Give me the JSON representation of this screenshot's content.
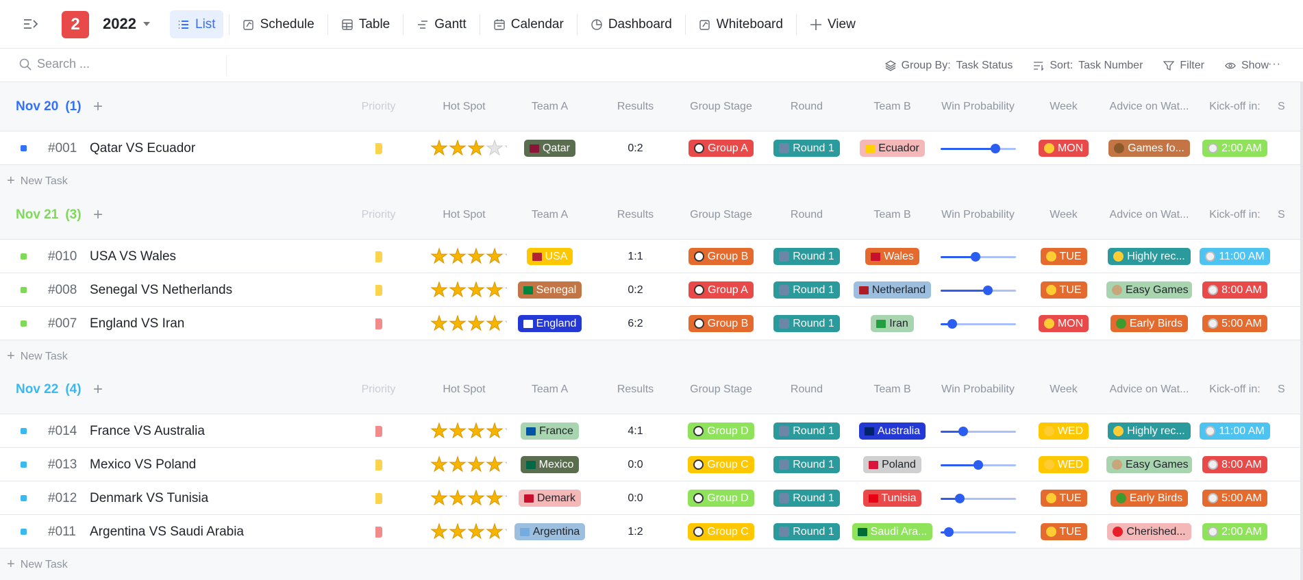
{
  "topbar": {
    "badge": "2",
    "year": "2022",
    "views": [
      {
        "label": "List",
        "icon": "list-icon",
        "active": true
      },
      {
        "label": "Schedule",
        "icon": "schedule-icon"
      },
      {
        "label": "Table",
        "icon": "table-icon"
      },
      {
        "label": "Gantt",
        "icon": "gantt-icon"
      },
      {
        "label": "Calendar",
        "icon": "calendar-icon"
      },
      {
        "label": "Dashboard",
        "icon": "dashboard-icon"
      },
      {
        "label": "Whiteboard",
        "icon": "whiteboard-icon"
      },
      {
        "label": "View",
        "icon": "plus-icon"
      }
    ]
  },
  "toolbar": {
    "search_placeholder": "Search ...",
    "group_by_label": "Group By:",
    "group_by_value": "Task Status",
    "sort_label": "Sort:",
    "sort_value": "Task Number",
    "filter": "Filter",
    "show": "Show",
    "more": "···"
  },
  "columns": [
    "Priority",
    "Hot Spot",
    "Team A",
    "Results",
    "Group Stage",
    "Round",
    "Team B",
    "Win Probability",
    "Week",
    "Advice on Wat...",
    "Kick-off in:",
    "S"
  ],
  "new_task_label": "New Task",
  "colors": {
    "group_A": "#e84a4a",
    "group_B": "#e56a2d",
    "group_C": "#ffc700",
    "group_D": "#8ee35a",
    "round": "#2a9a9d",
    "slider": "#2a5df0"
  },
  "groups": [
    {
      "title": "Nov 20",
      "count": "(1)",
      "color": "#3370ff",
      "tasks": [
        {
          "id": "#001",
          "title": "Qatar VS Ecuador",
          "priority": "#fcd34d",
          "stars": 3,
          "team_a": {
            "label": "Qatar",
            "bg": "#5a6e4f",
            "flag": "#8a1538",
            "dark": false
          },
          "results": "0:2",
          "group": {
            "label": "Group A",
            "bg": "#e84a4a"
          },
          "round": "Round 1",
          "team_b": {
            "label": "Ecuador",
            "bg": "#f5b8b8",
            "flag": "#ffd100",
            "dark": true
          },
          "win_probability": 0.73,
          "week": {
            "label": "MON",
            "bg": "#e84a4a"
          },
          "advice": {
            "label": "Games fo...",
            "bg": "#c37545",
            "icon": "owl-icon",
            "ic": "#8b5a2b"
          },
          "kickoff": {
            "label": "2:00 AM",
            "bg": "#8ee35a"
          }
        }
      ]
    },
    {
      "title": "Nov 21",
      "count": "(3)",
      "color": "#7ed957",
      "tasks": [
        {
          "id": "#010",
          "title": "USA VS Wales",
          "priority": "#fcd34d",
          "stars": 4,
          "team_a": {
            "label": "USA",
            "bg": "#ffc700",
            "flag": "#b22234",
            "dark": false
          },
          "results": "1:1",
          "group": {
            "label": "Group B",
            "bg": "#e56a2d"
          },
          "round": "Round 1",
          "team_b": {
            "label": "Wales",
            "bg": "#e56a2d",
            "flag": "#c8102e",
            "dark": false
          },
          "win_probability": 0.47,
          "week": {
            "label": "TUE",
            "bg": "#e56a2d"
          },
          "advice": {
            "label": "Highly rec...",
            "bg": "#2a9a9d",
            "icon": "thumbs-up-icon",
            "ic": "#ffcc33"
          },
          "kickoff": {
            "label": "11:00 AM",
            "bg": "#4cc3f0"
          }
        },
        {
          "id": "#008",
          "title": "Senegal VS Netherlands",
          "priority": "#fcd34d",
          "stars": 4,
          "team_a": {
            "label": "Senegal",
            "bg": "#c37545",
            "flag": "#00853f",
            "dark": false
          },
          "results": "0:2",
          "group": {
            "label": "Group A",
            "bg": "#e84a4a"
          },
          "round": "Round 1",
          "team_b": {
            "label": "Netherland",
            "bg": "#9dbfdf",
            "flag": "#ae1c28",
            "dark": true
          },
          "win_probability": 0.63,
          "week": {
            "label": "TUE",
            "bg": "#e56a2d"
          },
          "advice": {
            "label": "Easy Games",
            "bg": "#a8d5b0",
            "icon": "skewer-icon",
            "ic": "#c9a57a",
            "dark": true
          },
          "kickoff": {
            "label": "8:00 AM",
            "bg": "#e84a4a"
          }
        },
        {
          "id": "#007",
          "title": "England VS Iran",
          "priority": "#f28b8b",
          "stars": 4,
          "team_a": {
            "label": "England",
            "bg": "#2438d6",
            "flag": "#ffffff",
            "dark": false
          },
          "results": "6:2",
          "group": {
            "label": "Group B",
            "bg": "#e56a2d"
          },
          "round": "Round 1",
          "team_b": {
            "label": "Iran",
            "bg": "#a8d5b0",
            "flag": "#239f40",
            "dark": true
          },
          "win_probability": 0.16,
          "week": {
            "label": "MON",
            "bg": "#e84a4a"
          },
          "advice": {
            "label": "Early Birds",
            "bg": "#e56a2d",
            "icon": "parrot-icon",
            "ic": "#3c9a2f"
          },
          "kickoff": {
            "label": "5:00 AM",
            "bg": "#e56a2d"
          }
        }
      ]
    },
    {
      "title": "Nov 22",
      "count": "(4)",
      "color": "#3bb8f0",
      "tasks": [
        {
          "id": "#014",
          "title": "France VS Australia",
          "priority": "#f28b8b",
          "stars": 4,
          "team_a": {
            "label": "France",
            "bg": "#a8d5b0",
            "flag": "#0055a4",
            "dark": true
          },
          "results": "4:1",
          "group": {
            "label": "Group D",
            "bg": "#8ee35a"
          },
          "round": "Round 1",
          "team_b": {
            "label": "Australia",
            "bg": "#2438d6",
            "flag": "#012169",
            "dark": false
          },
          "win_probability": 0.3,
          "week": {
            "label": "WED",
            "bg": "#ffc700"
          },
          "advice": {
            "label": "Highly rec...",
            "bg": "#2a9a9d",
            "icon": "thumbs-up-icon",
            "ic": "#ffcc33"
          },
          "kickoff": {
            "label": "11:00 AM",
            "bg": "#4cc3f0"
          }
        },
        {
          "id": "#013",
          "title": "Mexico VS Poland",
          "priority": "#fcd34d",
          "stars": 4,
          "team_a": {
            "label": "Mexico",
            "bg": "#5a6e4f",
            "flag": "#006847",
            "dark": false
          },
          "results": "0:0",
          "group": {
            "label": "Group C",
            "bg": "#ffc700"
          },
          "round": "Round 1",
          "team_b": {
            "label": "Poland",
            "bg": "#d0d0d0",
            "flag": "#dc143c",
            "dark": true
          },
          "win_probability": 0.5,
          "week": {
            "label": "WED",
            "bg": "#ffc700"
          },
          "advice": {
            "label": "Easy Games",
            "bg": "#a8d5b0",
            "icon": "skewer-icon",
            "ic": "#c9a57a",
            "dark": true
          },
          "kickoff": {
            "label": "8:00 AM",
            "bg": "#e84a4a"
          }
        },
        {
          "id": "#012",
          "title": "Denmark VS Tunisia",
          "priority": "#fcd34d",
          "stars": 4,
          "team_a": {
            "label": "Demark",
            "bg": "#f5b8b8",
            "flag": "#c8102e",
            "dark": true
          },
          "results": "0:0",
          "group": {
            "label": "Group D",
            "bg": "#8ee35a"
          },
          "round": "Round 1",
          "team_b": {
            "label": "Tunisia",
            "bg": "#e84a4a",
            "flag": "#e70013",
            "dark": false
          },
          "win_probability": 0.26,
          "week": {
            "label": "TUE",
            "bg": "#e56a2d"
          },
          "advice": {
            "label": "Early Birds",
            "bg": "#e56a2d",
            "icon": "parrot-icon",
            "ic": "#3c9a2f"
          },
          "kickoff": {
            "label": "5:00 AM",
            "bg": "#e56a2d"
          }
        },
        {
          "id": "#011",
          "title": "Argentina VS Saudi Arabia",
          "priority": "#f28b8b",
          "stars": 4,
          "team_a": {
            "label": "Argentina",
            "bg": "#9dbfdf",
            "flag": "#74acdf",
            "dark": true
          },
          "results": "1:2",
          "group": {
            "label": "Group C",
            "bg": "#ffc700"
          },
          "round": "Round 1",
          "team_b": {
            "label": "Saudi Ara...",
            "bg": "#8ee35a",
            "flag": "#006c35",
            "dark": false
          },
          "win_probability": 0.11,
          "week": {
            "label": "TUE",
            "bg": "#e56a2d"
          },
          "advice": {
            "label": "Cherished...",
            "bg": "#f5b8b8",
            "icon": "heart-icon",
            "ic": "#e8202a",
            "dark": true
          },
          "kickoff": {
            "label": "2:00 AM",
            "bg": "#8ee35a"
          }
        }
      ]
    }
  ]
}
